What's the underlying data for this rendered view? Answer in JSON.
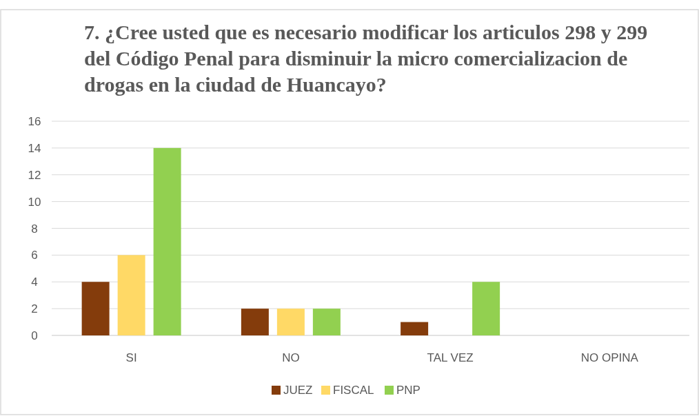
{
  "chart_data": {
    "type": "bar",
    "title": "7. ¿Cree usted que es necesario modificar los articulos 298 y 299 del Código Penal para disminuir la micro comercializacion de drogas en la ciudad de Huancayo?",
    "categories": [
      "SI",
      "NO",
      "TAL VEZ",
      "NO OPINA"
    ],
    "series": [
      {
        "name": "JUEZ",
        "color": "#843c0c",
        "values": [
          4,
          2,
          1,
          0
        ]
      },
      {
        "name": "FISCAL",
        "color": "#ffd966",
        "values": [
          6,
          2,
          0,
          0
        ]
      },
      {
        "name": "PNP",
        "color": "#92d050",
        "values": [
          14,
          2,
          4,
          0
        ]
      }
    ],
    "ylim": [
      0,
      16
    ],
    "yticks": [
      0,
      2,
      4,
      6,
      8,
      10,
      12,
      14,
      16
    ],
    "grid": "y",
    "legend": "bottom"
  }
}
